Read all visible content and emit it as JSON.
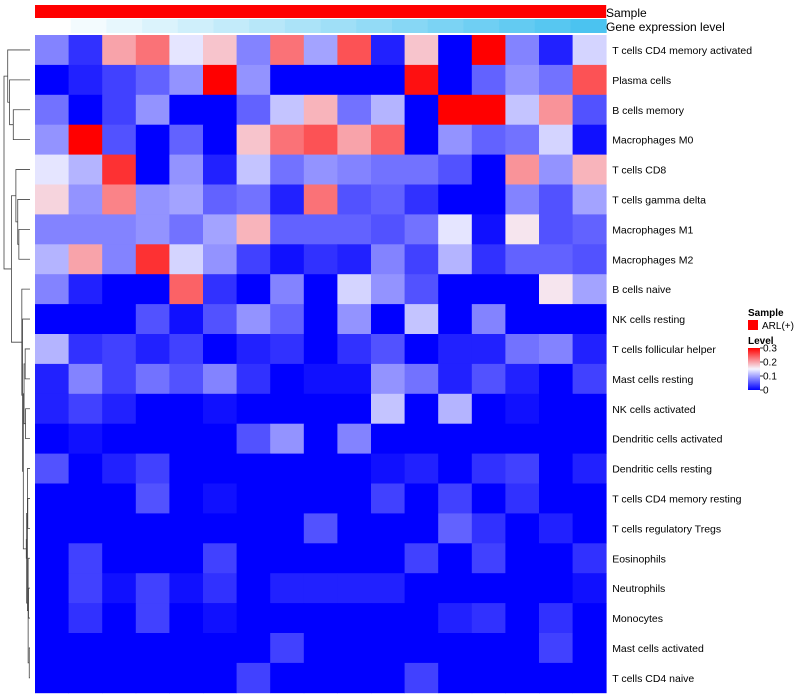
{
  "chart_data": {
    "type": "heatmap",
    "annotations": {
      "sample_label": "Sample",
      "gene_label": "Gene expression level",
      "sample_color": "#ff0000",
      "gene_colors": [
        "#ffffff",
        "#f3fbfe",
        "#e7f7fd",
        "#dbf3fc",
        "#cfeffb",
        "#c3ebfa",
        "#b7e7f9",
        "#abe3f8",
        "#9fdff7",
        "#93dbf6",
        "#87d7f5",
        "#7bd3f4",
        "#6fcff3",
        "#63cbf2",
        "#57c7f1",
        "#4bc3f0"
      ]
    },
    "rows": [
      "T cells CD4 memory activated",
      "Plasma cells",
      "B cells memory",
      "Macrophages M0",
      "T cells CD8",
      "T cells gamma delta",
      "Macrophages M1",
      "Macrophages M2",
      "B cells naive",
      "NK cells resting",
      "T cells follicular helper",
      "Mast cells resting",
      "NK cells activated",
      "Dendritic cells activated",
      "Dendritic cells resting",
      "T cells CD4 memory resting",
      "T cells regulatory  Tregs",
      "Eosinophils",
      "Neutrophils",
      "Monocytes",
      "Mast cells activated",
      "T cells CD4 naive"
    ],
    "values": [
      [
        0.08,
        0.03,
        0.2,
        0.23,
        0.14,
        0.18,
        0.08,
        0.23,
        0.1,
        0.25,
        0.02,
        0.18,
        0.0,
        0.3,
        0.08,
        0.02,
        0.13
      ],
      [
        0.0,
        0.02,
        0.04,
        0.06,
        0.09,
        0.3,
        0.09,
        0.0,
        0.0,
        0.0,
        0.0,
        0.29,
        0.0,
        0.06,
        0.09,
        0.07,
        0.25
      ],
      [
        0.07,
        0.0,
        0.04,
        0.09,
        0.0,
        0.0,
        0.06,
        0.12,
        0.19,
        0.07,
        0.11,
        0.0,
        0.3,
        0.3,
        0.12,
        0.21,
        0.05
      ],
      [
        0.09,
        0.3,
        0.05,
        0.0,
        0.06,
        0.0,
        0.18,
        0.23,
        0.25,
        0.2,
        0.24,
        0.0,
        0.09,
        0.06,
        0.07,
        0.13,
        0.01
      ],
      [
        0.14,
        0.11,
        0.27,
        0.0,
        0.09,
        0.02,
        0.12,
        0.07,
        0.09,
        0.08,
        0.07,
        0.07,
        0.05,
        0.0,
        0.21,
        0.09,
        0.19
      ],
      [
        0.17,
        0.09,
        0.22,
        0.09,
        0.1,
        0.06,
        0.07,
        0.02,
        0.23,
        0.05,
        0.06,
        0.03,
        0.0,
        0.0,
        0.08,
        0.05,
        0.1
      ],
      [
        0.08,
        0.08,
        0.08,
        0.09,
        0.07,
        0.1,
        0.19,
        0.06,
        0.06,
        0.06,
        0.05,
        0.07,
        0.14,
        0.01,
        0.16,
        0.05,
        0.06
      ],
      [
        0.11,
        0.2,
        0.08,
        0.27,
        0.13,
        0.09,
        0.04,
        0.01,
        0.03,
        0.02,
        0.08,
        0.04,
        0.11,
        0.03,
        0.06,
        0.06,
        0.05
      ],
      [
        0.08,
        0.02,
        0.0,
        0.0,
        0.24,
        0.03,
        0.0,
        0.08,
        0.0,
        0.13,
        0.09,
        0.05,
        0.0,
        0.0,
        0.0,
        0.16,
        0.1
      ],
      [
        0.0,
        0.0,
        0.0,
        0.05,
        0.01,
        0.05,
        0.09,
        0.06,
        0.0,
        0.09,
        0.0,
        0.12,
        0.0,
        0.08,
        0.0,
        0.0,
        0.0
      ],
      [
        0.11,
        0.03,
        0.04,
        0.02,
        0.04,
        0.0,
        0.02,
        0.03,
        0.0,
        0.03,
        0.05,
        0.0,
        0.02,
        0.02,
        0.07,
        0.08,
        0.02
      ],
      [
        0.02,
        0.08,
        0.04,
        0.07,
        0.05,
        0.08,
        0.03,
        0.0,
        0.01,
        0.01,
        0.09,
        0.07,
        0.02,
        0.05,
        0.02,
        0.0,
        0.04
      ],
      [
        0.02,
        0.04,
        0.02,
        0.0,
        0.0,
        0.01,
        0.0,
        0.0,
        0.0,
        0.0,
        0.12,
        0.0,
        0.11,
        0.0,
        0.01,
        0.0,
        0.0
      ],
      [
        0.0,
        0.01,
        0.0,
        0.0,
        0.0,
        0.0,
        0.05,
        0.09,
        0.0,
        0.08,
        0.0,
        0.0,
        0.0,
        0.0,
        0.0,
        0.0,
        0.0
      ],
      [
        0.05,
        0.0,
        0.02,
        0.04,
        0.0,
        0.0,
        0.0,
        0.0,
        0.0,
        0.0,
        0.01,
        0.02,
        0.0,
        0.03,
        0.04,
        0.0,
        0.02
      ],
      [
        0.0,
        0.0,
        0.0,
        0.05,
        0.0,
        0.01,
        0.0,
        0.0,
        0.0,
        0.0,
        0.04,
        0.0,
        0.04,
        0.0,
        0.03,
        0.0,
        0.0
      ],
      [
        0.0,
        0.0,
        0.0,
        0.0,
        0.0,
        0.0,
        0.0,
        0.0,
        0.05,
        0.0,
        0.0,
        0.0,
        0.06,
        0.03,
        0.0,
        0.02,
        0.0
      ],
      [
        0.0,
        0.04,
        0.0,
        0.0,
        0.0,
        0.04,
        0.0,
        0.0,
        0.0,
        0.0,
        0.0,
        0.04,
        0.0,
        0.04,
        0.0,
        0.0,
        0.03
      ],
      [
        0.0,
        0.04,
        0.01,
        0.04,
        0.01,
        0.03,
        0.0,
        0.02,
        0.02,
        0.02,
        0.02,
        0.0,
        0.0,
        0.0,
        0.0,
        0.0,
        0.01
      ],
      [
        0.0,
        0.03,
        0.0,
        0.04,
        0.0,
        0.01,
        0.0,
        0.0,
        0.0,
        0.0,
        0.0,
        0.0,
        0.02,
        0.03,
        0.0,
        0.03,
        0.0
      ],
      [
        0.0,
        0.0,
        0.0,
        0.0,
        0.0,
        0.0,
        0.0,
        0.04,
        0.0,
        0.0,
        0.0,
        0.0,
        0.0,
        0.0,
        0.0,
        0.04,
        0.0
      ],
      [
        0.0,
        0.0,
        0.0,
        0.0,
        0.0,
        0.0,
        0.04,
        0.0,
        0.0,
        0.0,
        0.0,
        0.04,
        0.0,
        0.0,
        0.0,
        0.0,
        0.0
      ]
    ],
    "color_scale": {
      "stops": [
        {
          "value": 0.0,
          "color": "#0000ff"
        },
        {
          "value": 0.15,
          "color": "#f5f5ff"
        },
        {
          "value": 0.3,
          "color": "#ff0000"
        }
      ],
      "range": [
        0,
        0.3
      ]
    },
    "legend": {
      "sample_title": "Sample",
      "sample_entry": "ARL(+)",
      "level_title": "Level",
      "ticks": [
        {
          "value": 0.3,
          "label": "0.3"
        },
        {
          "value": 0.2,
          "label": "0.2"
        },
        {
          "value": 0.1,
          "label": "0.1"
        },
        {
          "value": 0.0,
          "label": "0"
        }
      ],
      "position": "right"
    },
    "dendrogram": {
      "merges": [
        [
          20,
          21,
          0.02
        ],
        [
          18,
          19,
          0.04
        ],
        [
          17,
          -1,
          0.05
        ],
        [
          15,
          16,
          0.06
        ],
        [
          14,
          -3,
          0.07
        ],
        [
          -2,
          -4,
          0.09
        ],
        [
          -5,
          -6,
          0.1
        ],
        [
          12,
          13,
          0.12
        ],
        [
          10,
          11,
          0.13
        ],
        [
          -8,
          -9,
          0.16
        ],
        [
          -7,
          -10,
          0.18
        ],
        [
          9,
          -11,
          0.2
        ],
        [
          8,
          -12,
          0.22
        ],
        [
          6,
          7,
          0.3
        ],
        [
          5,
          -14,
          0.33
        ],
        [
          4,
          -15,
          0.38
        ],
        [
          2,
          3,
          0.45
        ],
        [
          -16,
          -13,
          0.5
        ],
        [
          1,
          -17,
          0.55
        ],
        [
          0,
          -19,
          0.6
        ],
        [
          -20,
          -18,
          0.7
        ]
      ]
    }
  }
}
